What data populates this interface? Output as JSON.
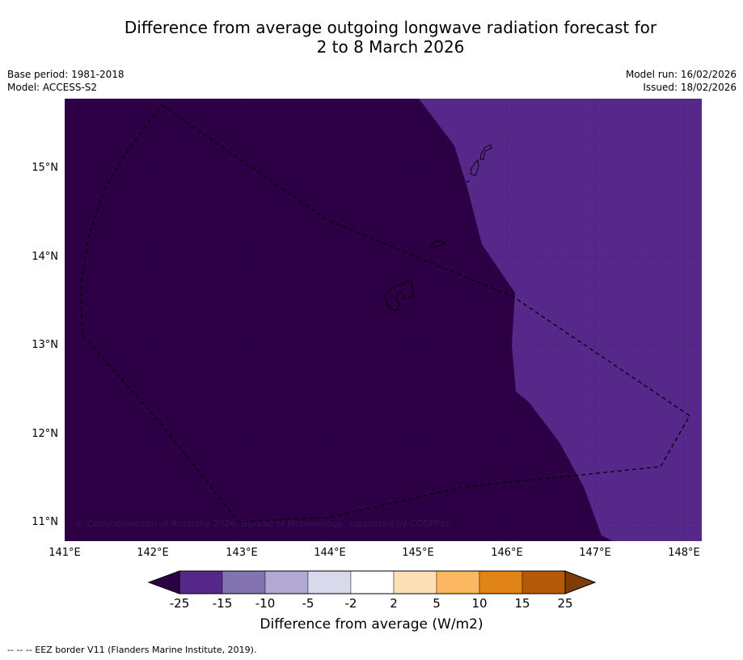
{
  "title": {
    "line1": "Difference from average outgoing longwave radiation forecast for",
    "line2": "2 to 8 March 2026"
  },
  "meta": {
    "base_period": "Base period: 1981-2018",
    "model": "Model: ACCESS-S2",
    "model_run": "Model run: 16/02/2026",
    "issued": "Issued: 18/02/2026"
  },
  "map": {
    "y_ticks": [
      "15°N",
      "14°N",
      "13°N",
      "12°N",
      "11°N"
    ],
    "x_ticks": [
      "141°E",
      "142°E",
      "143°E",
      "144°E",
      "145°E",
      "146°E",
      "147°E",
      "148°E"
    ],
    "copyright": "© Commonwealth of Australia 2026, Bureau of Meteorology, supported by COSPPac",
    "colors": {
      "below_minus25": "#2d0046",
      "minus25_to_minus15": "#55288a",
      "border": "#000000"
    }
  },
  "colorbar": {
    "title": "Difference from average (W/m2)",
    "tick_labels": [
      "-25",
      "-15",
      "-10",
      "-5",
      "-2",
      "2",
      "5",
      "10",
      "15",
      "25"
    ],
    "colors": [
      "#2d0046",
      "#55288a",
      "#8273b0",
      "#b1a9d4",
      "#d9d9ec",
      "#ffffff",
      "#fde0b5",
      "#fbb861",
      "#e08416",
      "#b45a07",
      "#7f3b08"
    ]
  },
  "footnote": "--  --  -- EEZ border V11 (Flanders Marine Institute, 2019)."
}
